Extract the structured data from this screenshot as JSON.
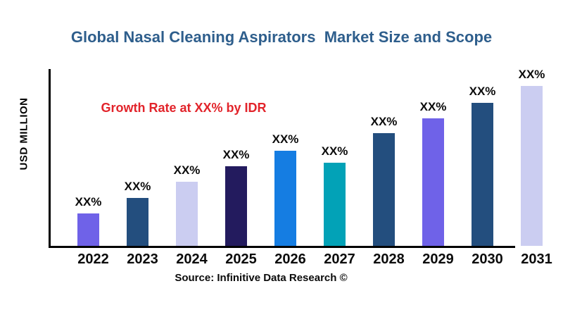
{
  "header": {
    "title": "Global Nasal Cleaning Aspirators  Market Size and Scope"
  },
  "chart": {
    "ylabel": "USD MILLION",
    "annotation": "Growth Rate at XX% by IDR",
    "source": "Source: Infinitive Data Research ©"
  },
  "theme": {
    "title_color": "#2E5E8C",
    "annotation_color": "#E2242B",
    "axis_color": "#000000",
    "label_color": "#0B0B0B"
  },
  "chart_data": {
    "type": "bar",
    "title": "Global Nasal Cleaning Aspirators  Market Size and Scope",
    "xlabel": "",
    "ylabel": "USD MILLION",
    "categories": [
      "2022",
      "2023",
      "2024",
      "2025",
      "2026",
      "2027",
      "2028",
      "2029",
      "2030",
      "2031"
    ],
    "values": [
      46,
      68,
      91,
      113,
      135,
      118,
      160,
      181,
      203,
      227
    ],
    "value_note": "relative bar heights in px; no numeric y-axis shown, all bars labeled XX%",
    "value_labels": [
      "XX%",
      "XX%",
      "XX%",
      "XX%",
      "XX%",
      "XX%",
      "XX%",
      "XX%",
      "XX%",
      "XX%"
    ],
    "bar_colors": [
      "#6F62E8",
      "#234E7E",
      "#CBCDF1",
      "#231B5E",
      "#157DE2",
      "#02A2B7",
      "#234E7E",
      "#6F62E8",
      "#234E7E",
      "#CBCDF1"
    ],
    "annotation": "Growth Rate at XX% by IDR",
    "legend": false,
    "grid": false
  }
}
